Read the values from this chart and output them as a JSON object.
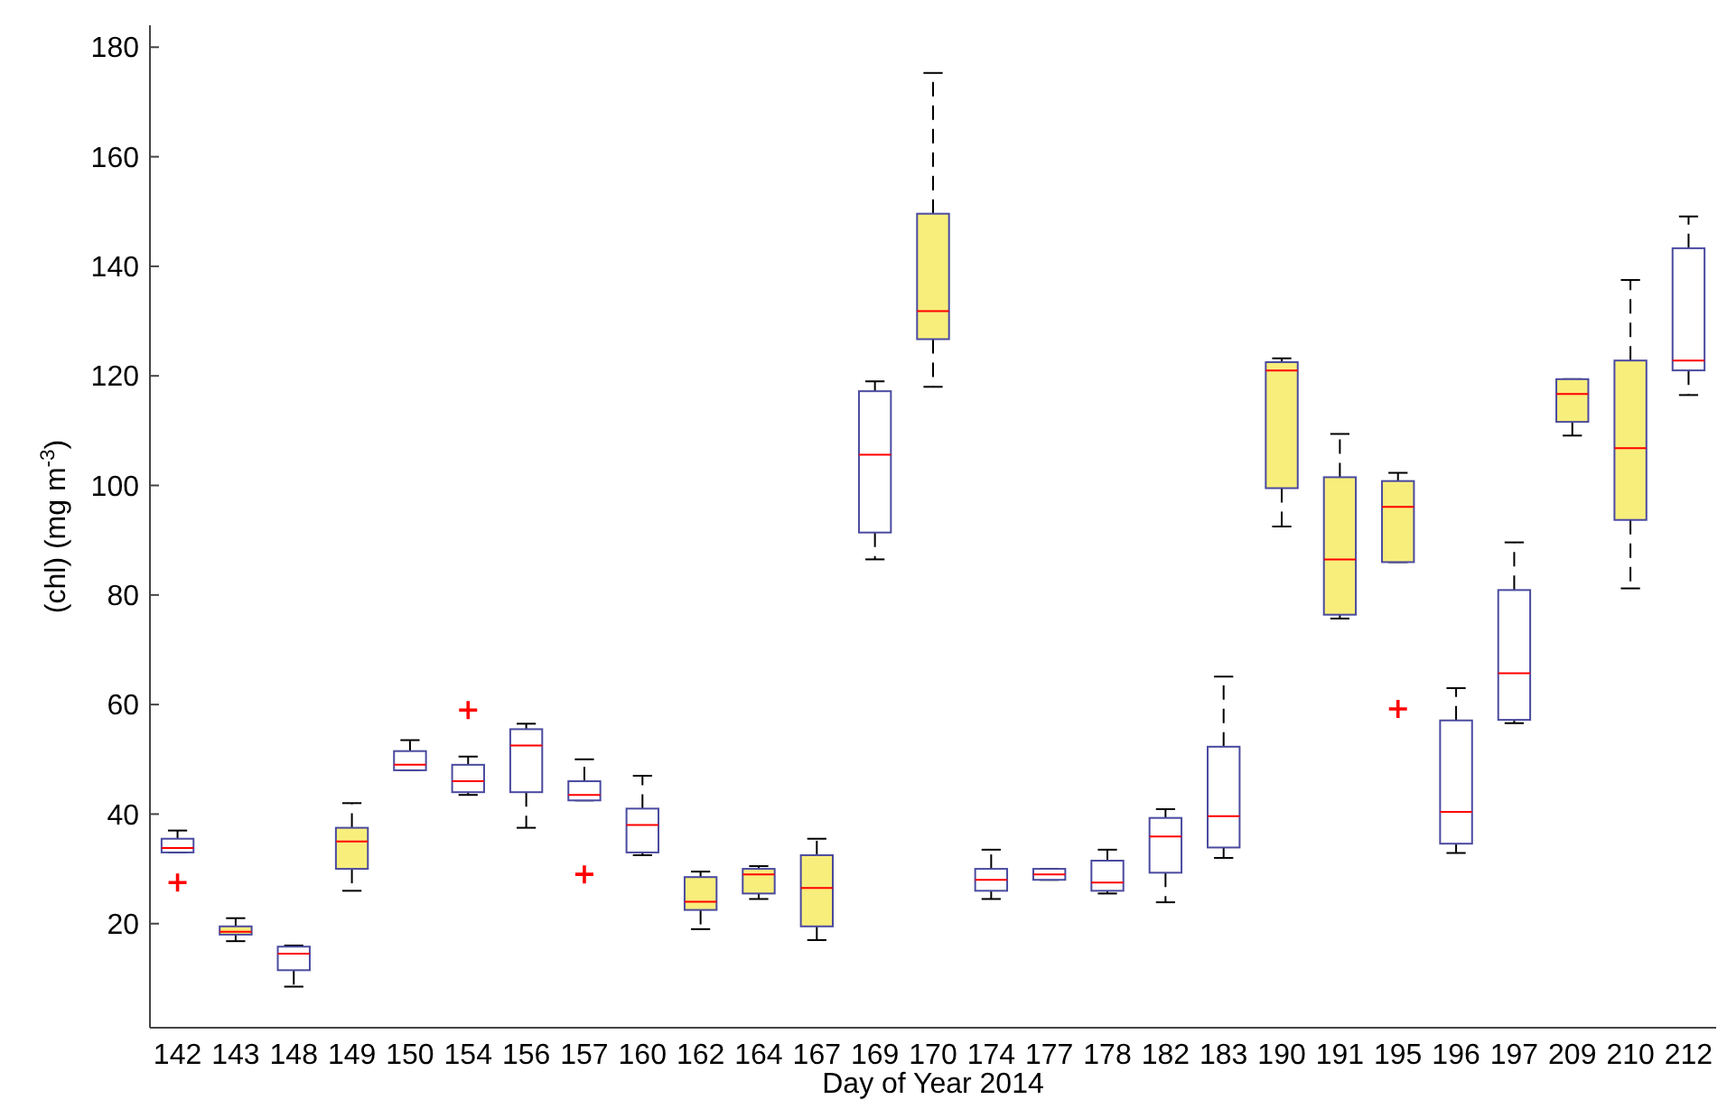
{
  "chart_data": {
    "type": "box",
    "xlabel": "Day of Year 2014",
    "ylabel": "(chl) (mg m$^{-3}$)",
    "categories": [
      "142",
      "143",
      "148",
      "149",
      "150",
      "154",
      "156",
      "157",
      "160",
      "162",
      "164",
      "167",
      "169",
      "170",
      "174",
      "177",
      "178",
      "182",
      "183",
      "190",
      "191",
      "195",
      "196",
      "197",
      "209",
      "210",
      "212"
    ],
    "ylim": [
      1,
      184
    ],
    "yticks": [
      20,
      40,
      60,
      80,
      100,
      120,
      140,
      160,
      180
    ],
    "grid": false,
    "marker": "cross",
    "line_style": "dashed",
    "series": [
      {
        "color": "#ffffff",
        "boxes": [
          {
            "low": 33,
            "q1": 33,
            "median": 33.8,
            "q3": 35.5,
            "high": 37,
            "outliers": [
              27.5
            ]
          },
          null,
          {
            "low": 8.5,
            "q1": 11.5,
            "median": 14.5,
            "q3": 15.8,
            "high": 16
          },
          null,
          {
            "low": 48,
            "q1": 48,
            "median": 49,
            "q3": 51.5,
            "high": 53.5
          },
          {
            "low": 43.5,
            "q1": 44,
            "median": 46,
            "q3": 49,
            "high": 50.5,
            "outliers": [
              59
            ]
          },
          {
            "low": 37.5,
            "q1": 44,
            "median": 52.5,
            "q3": 55.5,
            "high": 56.5
          },
          {
            "low": 42.5,
            "q1": 42.5,
            "median": 43.5,
            "q3": 46,
            "high": 50,
            "outliers": [
              29
            ]
          },
          {
            "low": 32.5,
            "q1": 33,
            "median": 38,
            "q3": 41,
            "high": 47
          },
          null,
          null,
          null,
          {
            "low": 86.5,
            "q1": 91.4,
            "median": 105.6,
            "q3": 117.2,
            "high": 119
          },
          null,
          {
            "low": 24.5,
            "q1": 26,
            "median": 28,
            "q3": 30,
            "high": 33.5
          },
          {
            "low": 28,
            "q1": 28,
            "median": 29,
            "q3": 30,
            "high": 30
          },
          {
            "low": 25.5,
            "q1": 26,
            "median": 27.5,
            "q3": 31.5,
            "high": 33.5
          },
          {
            "low": 23.9,
            "q1": 29.3,
            "median": 35.9,
            "q3": 39.3,
            "high": 40.9
          },
          {
            "low": 32,
            "q1": 33.9,
            "median": 39.6,
            "q3": 52.3,
            "high": 65.1
          },
          null,
          null,
          null,
          {
            "low": 32.9,
            "q1": 34.6,
            "median": 40.4,
            "q3": 57.1,
            "high": 63
          },
          {
            "low": 56.6,
            "q1": 57.2,
            "median": 65.7,
            "q3": 80.9,
            "high": 89.6
          },
          null,
          null,
          {
            "low": 116.5,
            "q1": 121,
            "median": 122.8,
            "q3": 143.3,
            "high": 149.1
          }
        ]
      },
      {
        "color": "#f8ee7c",
        "boxes": [
          null,
          {
            "low": 16.8,
            "q1": 18,
            "median": 18.5,
            "q3": 19.5,
            "high": 21
          },
          null,
          {
            "low": 26,
            "q1": 30,
            "median": 35,
            "q3": 37.5,
            "high": 42
          },
          null,
          null,
          null,
          null,
          null,
          {
            "low": 19,
            "q1": 22.5,
            "median": 24,
            "q3": 28.5,
            "high": 29.5
          },
          {
            "low": 24.5,
            "q1": 25.5,
            "median": 29,
            "q3": 30,
            "high": 30.5
          },
          {
            "low": 17,
            "q1": 19.5,
            "median": 26.5,
            "q3": 32.5,
            "high": 35.5
          },
          null,
          {
            "low": 118,
            "q1": 126.7,
            "median": 131.8,
            "q3": 149.6,
            "high": 175.3
          },
          null,
          null,
          null,
          null,
          null,
          {
            "low": 92.5,
            "q1": 99.5,
            "median": 121,
            "q3": 122.5,
            "high": 123.2
          },
          {
            "low": 75.7,
            "q1": 76.4,
            "median": 86.5,
            "q3": 101.5,
            "high": 109.4
          },
          {
            "low": 86,
            "q1": 86,
            "median": 96.1,
            "q3": 100.8,
            "high": 102.3,
            "outliers": [
              59.2
            ]
          },
          null,
          null,
          {
            "low": 109.1,
            "q1": 111.6,
            "median": 116.7,
            "q3": 119.4,
            "high": 119.4
          },
          {
            "low": 81.2,
            "q1": 93.7,
            "median": 106.8,
            "q3": 122.8,
            "high": 137.5
          },
          null
        ]
      }
    ]
  }
}
